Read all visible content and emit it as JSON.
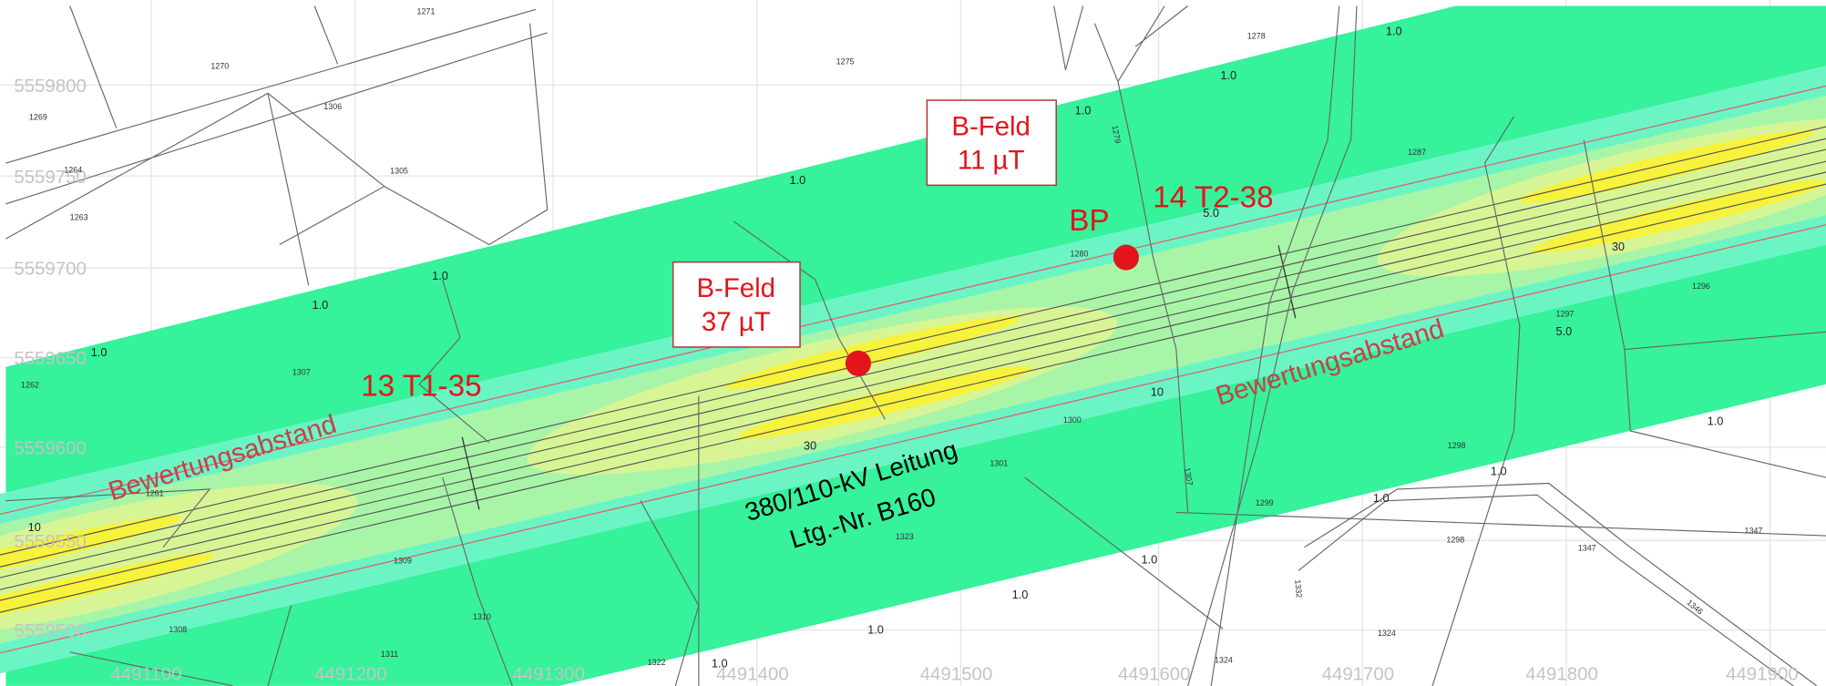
{
  "grid": {
    "northing": [
      5559800,
      5559750,
      5559700,
      5559650,
      5559600,
      5559550,
      5559500
    ],
    "easting": [
      4491100,
      4491200,
      4491300,
      4491400,
      4491500,
      4491600,
      4491700,
      4491800,
      4491900
    ]
  },
  "annotations": {
    "b_feld_upper": [
      "B-Feld",
      "11 µT"
    ],
    "b_feld_lower": [
      "B-Feld",
      "37 µT"
    ],
    "bp": "BP",
    "tower_right": "14 T2-38",
    "tower_left": "13 T1-35",
    "zone_left": "Bewertungsabstand",
    "zone_right": "Bewertungsabstand",
    "line_name": [
      "380/110-kV Leitung",
      "Ltg.-Nr. B160"
    ]
  },
  "contour_labels": [
    "1.0",
    "1.0",
    "1.0",
    "1.0",
    "1.0",
    "1.0",
    "1.0",
    "1.0",
    "1.0",
    "1.0",
    "1.0",
    "1.0",
    "1.0",
    "1.0",
    "5.0",
    "5.0",
    "10",
    "10",
    "30",
    "30"
  ],
  "parcels": [
    "1271",
    "1270",
    "1275",
    "1278",
    "1269",
    "1306",
    "1305",
    "1264",
    "1263",
    "1287",
    "1280",
    "1296",
    "1297",
    "1262",
    "1307",
    "1300",
    "1298",
    "1301",
    "1261",
    "1323",
    "1299",
    "1298",
    "1347",
    "1347",
    "1309",
    "1308",
    "1310",
    "1311",
    "1322",
    "1324",
    "1324",
    "1279",
    "1307",
    "1332",
    "1346"
  ]
}
